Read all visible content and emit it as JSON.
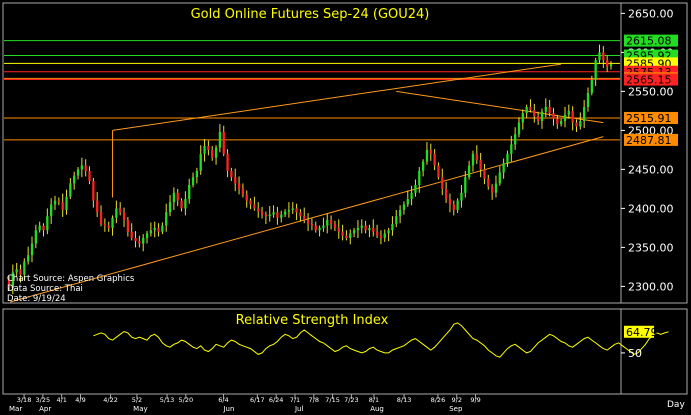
{
  "chart_data": {
    "type": "candlestick",
    "title": "Gold Online Futures Sep-24 (GOU24)",
    "source_lines": [
      "Chart Source: Aspen Graphics",
      "Data Source: Thai",
      "Date: 9/19/24"
    ],
    "price_axis": {
      "ticks": [
        "2650.00",
        "2600.00",
        "2550.00",
        "2500.00",
        "2450.00",
        "2400.00",
        "2350.00",
        "2300.00"
      ],
      "ylim": [
        2280,
        2662
      ]
    },
    "horizontal_levels": [
      {
        "label": "2615.08",
        "value": 2615.08,
        "color": "#22dd22"
      },
      {
        "label": "2595.92",
        "value": 2595.92,
        "color": "#22dd22"
      },
      {
        "label": "2585.90",
        "value": 2585.9,
        "color": "#ffff00"
      },
      {
        "label": "2575.13",
        "value": 2575.13,
        "color": "#ff2222"
      },
      {
        "label": "2566.71",
        "value": 2566.71,
        "color": "#ff8c00"
      },
      {
        "label": "2565.15",
        "value": 2565.15,
        "color": "#ff2222"
      },
      {
        "label": "2515.91",
        "value": 2515.91,
        "color": "#ff8c00"
      },
      {
        "label": "2487.81",
        "value": 2487.81,
        "color": "#ff8c00"
      }
    ],
    "trendlines": [
      {
        "from": [
          0.3,
          2280
        ],
        "to": [
          155,
          2492
        ]
      },
      {
        "from": [
          27,
          2500
        ],
        "to": [
          144,
          2585
        ]
      },
      {
        "from": [
          27,
          2500
        ],
        "to": [
          27,
          2414
        ]
      },
      {
        "from": [
          101,
          2550
        ],
        "to": [
          155,
          2510
        ]
      }
    ],
    "candles_open": 2310,
    "candles_close": [
      2298,
      2318,
      2322,
      2315,
      2332,
      2340,
      2355,
      2372,
      2378,
      2372,
      2390,
      2405,
      2410,
      2408,
      2398,
      2415,
      2432,
      2442,
      2450,
      2455,
      2448,
      2435,
      2410,
      2395,
      2380,
      2378,
      2375,
      2388,
      2400,
      2395,
      2385,
      2370,
      2362,
      2358,
      2355,
      2362,
      2368,
      2372,
      2375,
      2370,
      2378,
      2395,
      2408,
      2420,
      2410,
      2400,
      2412,
      2430,
      2440,
      2448,
      2470,
      2480,
      2475,
      2465,
      2478,
      2498,
      2470,
      2448,
      2440,
      2432,
      2425,
      2418,
      2410,
      2405,
      2400,
      2396,
      2392,
      2390,
      2392,
      2395,
      2388,
      2392,
      2396,
      2398,
      2400,
      2395,
      2390,
      2385,
      2380,
      2378,
      2372,
      2375,
      2378,
      2385,
      2380,
      2375,
      2370,
      2365,
      2362,
      2368,
      2372,
      2375,
      2378,
      2372,
      2375,
      2370,
      2365,
      2362,
      2368,
      2372,
      2380,
      2390,
      2398,
      2405,
      2412,
      2420,
      2430,
      2448,
      2460,
      2475,
      2470,
      2455,
      2440,
      2425,
      2412,
      2405,
      2398,
      2410,
      2420,
      2440,
      2455,
      2470,
      2462,
      2450,
      2438,
      2428,
      2420,
      2432,
      2446,
      2458,
      2470,
      2482,
      2495,
      2510,
      2522,
      2530,
      2526,
      2518,
      2512,
      2524,
      2530,
      2522,
      2515,
      2508,
      2512,
      2520,
      2525,
      2510,
      2505,
      2512,
      2530,
      2548,
      2565,
      2590,
      2600,
      2590,
      2582,
      2585
    ],
    "x_axis": {
      "date_labels": [
        "3/18",
        "3/25",
        "4/1",
        "4/9",
        "4/22",
        "5/2",
        "5/13",
        "5/20",
        "6/4",
        "6/17",
        "6/24",
        "7/1",
        "7/8",
        "7/15",
        "7/23",
        "8/1",
        "8/13",
        "8/26",
        "9/2",
        "9/9"
      ],
      "month_labels": [
        "Mar",
        "Apr",
        "May",
        "Jun",
        "Jul",
        "Aug",
        "Sep"
      ],
      "right_label": "Day"
    },
    "rsi": {
      "title": "Relative Strength Index",
      "ticks": [
        "50"
      ],
      "ylim": [
        22,
        80
      ],
      "last_label": "64.79",
      "start_index": 22,
      "values": [
        62,
        63,
        64,
        63,
        60,
        59,
        61,
        63,
        65,
        64,
        61,
        60,
        61,
        60,
        59,
        62,
        63,
        61,
        57,
        55,
        54,
        56,
        57,
        59,
        58,
        56,
        54,
        53,
        55,
        52,
        51,
        53,
        56,
        55,
        54,
        57,
        59,
        58,
        56,
        55,
        54,
        53,
        51,
        49,
        50,
        53,
        55,
        56,
        58,
        61,
        63,
        62,
        60,
        61,
        64,
        66,
        64,
        62,
        60,
        58,
        57,
        55,
        53,
        51,
        52,
        54,
        55,
        53,
        52,
        51,
        50,
        51,
        53,
        54,
        52,
        51,
        50,
        50,
        52,
        53,
        54,
        55,
        57,
        59,
        60,
        58,
        56,
        54,
        52,
        54,
        57,
        60,
        63,
        66,
        70,
        71,
        69,
        66,
        63,
        60,
        59,
        57,
        55,
        52,
        50,
        48,
        47,
        50,
        53,
        55,
        56,
        54,
        52,
        50,
        51,
        54,
        57,
        59,
        61,
        63,
        62,
        60,
        58,
        57,
        55,
        54,
        56,
        58,
        60,
        61,
        59,
        57,
        55,
        53,
        52,
        54,
        56,
        57,
        55,
        53,
        51,
        49,
        50,
        53,
        56,
        60,
        62,
        64,
        63,
        64,
        64.79
      ]
    }
  }
}
